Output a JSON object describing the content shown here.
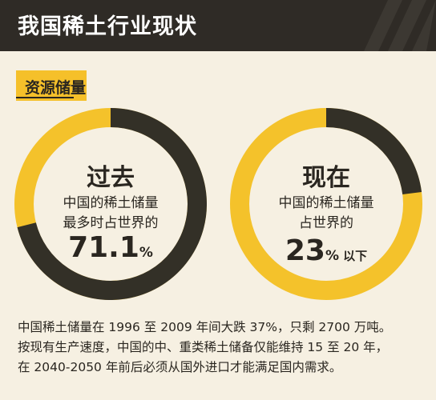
{
  "header": {
    "title": "我国稀土行业现状"
  },
  "section": {
    "label": "资源储量"
  },
  "chart_data": [
    {
      "type": "pie",
      "title": "过去",
      "description_lines": [
        "中国的稀土储量",
        "最多时占世界的"
      ],
      "value": 71.1,
      "value_label": "71.1",
      "unit": "%",
      "suffix": "",
      "colors": {
        "share": "#333027",
        "rest": "#f4c22b"
      }
    },
    {
      "type": "pie",
      "title": "现在",
      "description_lines": [
        "中国的稀土储量",
        "占世界的"
      ],
      "value": 23,
      "value_label": "23",
      "unit": "%",
      "suffix": "以下",
      "colors": {
        "share": "#333027",
        "rest": "#f4c22b"
      }
    }
  ],
  "footer": {
    "lines": [
      "中国稀土储量在 1996 至 2009 年间大跌 37%，只剩 2700 万吨。",
      "按现有生产速度，中国的中、重类稀土储备仅能维持 15 至 20 年，",
      "在 2040-2050 年前后必须从国外进口才能满足国内需求。"
    ]
  }
}
